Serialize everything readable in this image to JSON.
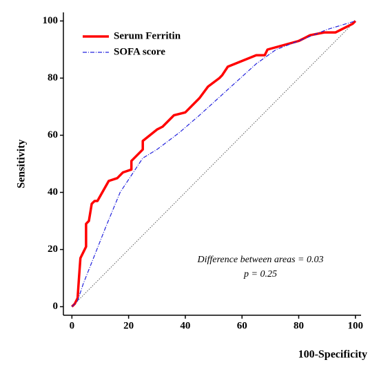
{
  "chart_data": {
    "type": "line",
    "x_label": "100-Specificity",
    "y_label": "Sensitivity",
    "annotations": [
      "Difference between areas = 0.03",
      "p = 0.25"
    ],
    "xlim": [
      -3,
      102
    ],
    "ylim": [
      -3,
      103
    ],
    "xticks": [
      0,
      20,
      40,
      60,
      80,
      100
    ],
    "yticks": [
      0,
      20,
      40,
      60,
      80,
      100
    ],
    "series": [
      {
        "name": "Serum Ferritin",
        "color": "#ff0000",
        "x": [
          0,
          1,
          2,
          2.5,
          3,
          4,
          5,
          5,
          6,
          7,
          8,
          9,
          13,
          16,
          18,
          21,
          21,
          25,
          25,
          30,
          32,
          36,
          40,
          45,
          48,
          52,
          53,
          55,
          65,
          68,
          69,
          80,
          82,
          84,
          89,
          93,
          95,
          97,
          99,
          100
        ],
        "values": [
          0,
          1,
          3,
          10,
          17,
          19,
          21,
          29,
          30,
          36,
          37,
          37,
          44,
          45,
          47,
          48,
          51,
          55,
          58,
          62,
          63,
          67,
          68,
          73,
          77,
          80,
          81,
          84,
          88,
          88,
          90,
          93,
          94,
          95,
          96,
          96,
          97,
          98,
          99,
          100
        ]
      },
      {
        "name": "SOFA score",
        "color": "#2222dd",
        "x": [
          0,
          2,
          4,
          8,
          12,
          17,
          25,
          30,
          38,
          45,
          55,
          65,
          72,
          80,
          90,
          100
        ],
        "values": [
          0,
          2,
          8,
          18,
          28,
          40,
          52,
          55,
          61,
          67,
          76,
          85,
          90,
          93,
          97,
          100
        ]
      }
    ]
  }
}
